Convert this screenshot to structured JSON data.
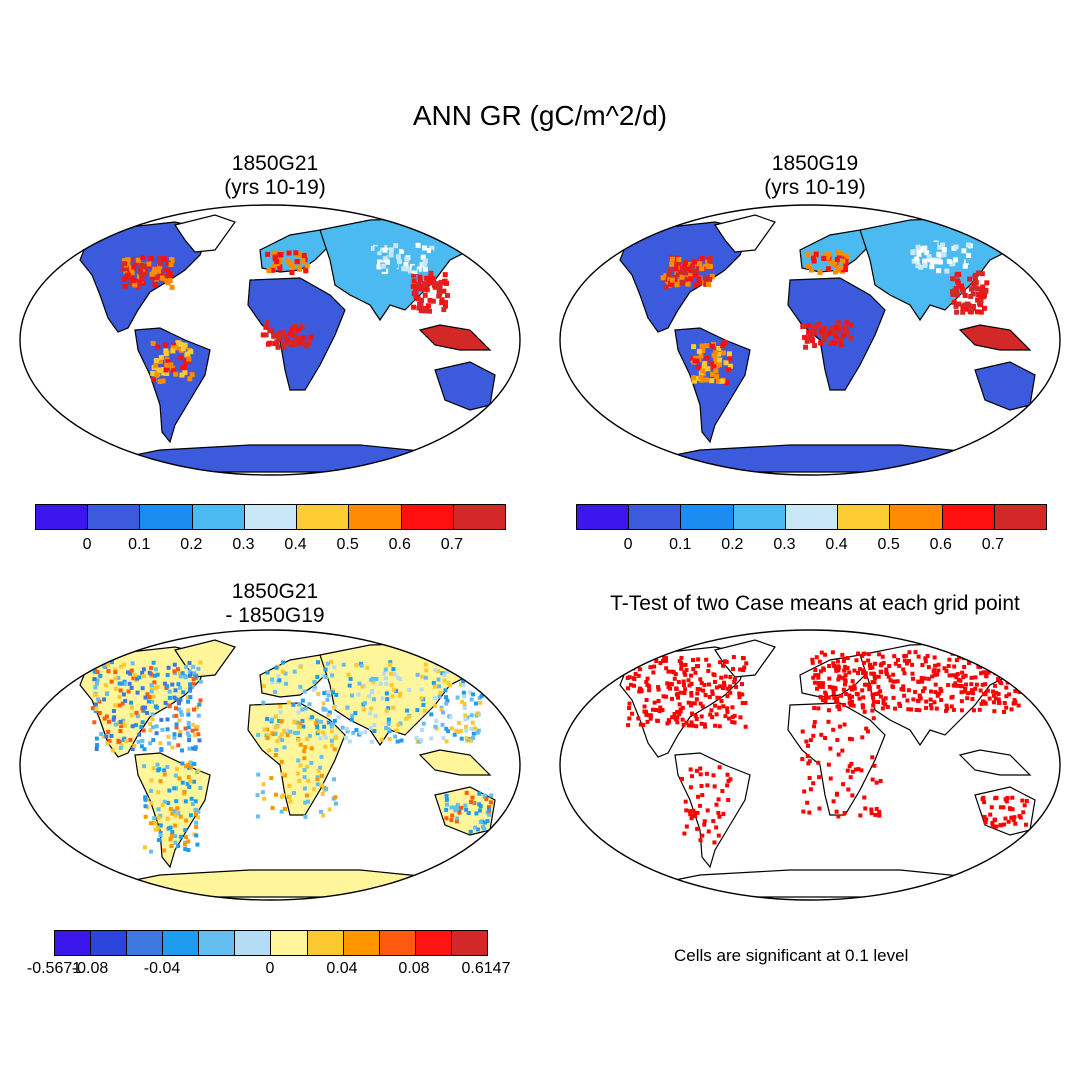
{
  "main_title": "ANN GR (gC/m^2/d)",
  "panels": {
    "p1": {
      "title_line1": "1850G21",
      "title_line2": "(yrs 10-19)"
    },
    "p2": {
      "title_line1": "1850G19",
      "title_line2": "(yrs 10-19)"
    },
    "p3": {
      "title_line1": "1850G21",
      "title_line2": "- 1850G19"
    },
    "p4": {
      "title_line1": "T-Test of two Case means at each grid point"
    }
  },
  "colorbar_main": {
    "colors": [
      "#3b17ee",
      "#3c5bdc",
      "#1c8cf0",
      "#4bbaf0",
      "#c8e8f8",
      "#fccc30",
      "#ff8c00",
      "#ff1010",
      "#d22828"
    ],
    "labels": [
      "0",
      "0.1",
      "0.2",
      "0.3",
      "0.4",
      "0.5",
      "0.6",
      "0.7"
    ]
  },
  "colorbar_diff": {
    "colors": [
      "#3b17ee",
      "#2a44dc",
      "#3c78e0",
      "#1e9cf0",
      "#64bef0",
      "#b4dcf4",
      "#fff59b",
      "#fcc830",
      "#ff9600",
      "#ff5a10",
      "#ff1414",
      "#d22828"
    ],
    "labels": [
      "-0.5671",
      "-0.08",
      "-0.04",
      "0",
      "0.04",
      "0.08",
      "0.6147"
    ]
  },
  "significance_note": "Cells are significant at 0.1 level",
  "map_colors": {
    "ocean": "#ffffff",
    "land_low": "#3c5bdc",
    "land_mid": "#4bbaf0",
    "land_high": "#ff1010",
    "land_top": "#d22828",
    "diff_base": "#fff59b",
    "sig": "#ff0000"
  }
}
